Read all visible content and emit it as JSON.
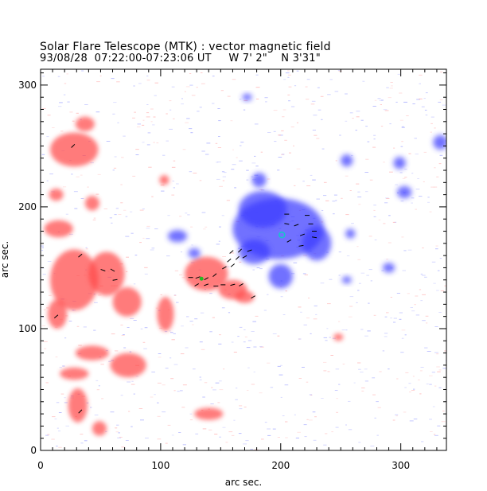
{
  "header": {
    "title": "Solar Flare Telescope (MTK) : vector magnetic field",
    "subtitle": "93/08/28  07:22:00-07:23:06 UT     W 7' 2\"    N 3'31\""
  },
  "chart_data": {
    "type": "heatmap",
    "xlabel": "arc sec.",
    "ylabel": "arc sec.",
    "xlim": [
      0,
      338
    ],
    "ylim": [
      0,
      313
    ],
    "x_ticks": [
      0,
      100,
      200,
      300
    ],
    "y_ticks": [
      0,
      100,
      200,
      300
    ],
    "grid": false,
    "colors": {
      "positive_polarity": "#ff4a4a",
      "negative_polarity": "#3a3aff",
      "vectors": "#000000",
      "marker_cyan": "#14c8c8",
      "marker_green": "#22bb22"
    },
    "regions": [
      {
        "polarity": "positive",
        "x": 28,
        "y": 247,
        "rx": 20,
        "ry": 14
      },
      {
        "polarity": "positive",
        "x": 37,
        "y": 268,
        "rx": 8,
        "ry": 6
      },
      {
        "polarity": "positive",
        "x": 13,
        "y": 210,
        "rx": 6,
        "ry": 5
      },
      {
        "polarity": "positive",
        "x": 43,
        "y": 203,
        "rx": 6,
        "ry": 6
      },
      {
        "polarity": "positive",
        "x": 15,
        "y": 182,
        "rx": 12,
        "ry": 7
      },
      {
        "polarity": "positive",
        "x": 28,
        "y": 140,
        "rx": 20,
        "ry": 25
      },
      {
        "polarity": "positive",
        "x": 55,
        "y": 145,
        "rx": 15,
        "ry": 18
      },
      {
        "polarity": "positive",
        "x": 72,
        "y": 122,
        "rx": 12,
        "ry": 12
      },
      {
        "polarity": "positive",
        "x": 14,
        "y": 112,
        "rx": 8,
        "ry": 12
      },
      {
        "polarity": "positive",
        "x": 73,
        "y": 70,
        "rx": 15,
        "ry": 10
      },
      {
        "polarity": "positive",
        "x": 43,
        "y": 80,
        "rx": 14,
        "ry": 6
      },
      {
        "polarity": "positive",
        "x": 28,
        "y": 63,
        "rx": 12,
        "ry": 5
      },
      {
        "polarity": "positive",
        "x": 31,
        "y": 37,
        "rx": 8,
        "ry": 14
      },
      {
        "polarity": "positive",
        "x": 49,
        "y": 18,
        "rx": 6,
        "ry": 6
      },
      {
        "polarity": "positive",
        "x": 104,
        "y": 112,
        "rx": 7,
        "ry": 14
      },
      {
        "polarity": "positive",
        "x": 138,
        "y": 145,
        "rx": 18,
        "ry": 14
      },
      {
        "polarity": "positive",
        "x": 160,
        "y": 132,
        "rx": 12,
        "ry": 8
      },
      {
        "polarity": "positive",
        "x": 170,
        "y": 126,
        "rx": 8,
        "ry": 5
      },
      {
        "polarity": "positive",
        "x": 103,
        "y": 222,
        "rx": 4,
        "ry": 4
      },
      {
        "polarity": "positive",
        "x": 248,
        "y": 93,
        "rx": 4,
        "ry": 3
      },
      {
        "polarity": "positive",
        "x": 140,
        "y": 30,
        "rx": 12,
        "ry": 5
      },
      {
        "polarity": "negative",
        "x": 198,
        "y": 182,
        "rx": 38,
        "ry": 25
      },
      {
        "polarity": "negative",
        "x": 230,
        "y": 170,
        "rx": 12,
        "ry": 14
      },
      {
        "polarity": "negative",
        "x": 185,
        "y": 198,
        "rx": 20,
        "ry": 15
      },
      {
        "polarity": "negative",
        "x": 178,
        "y": 163,
        "rx": 13,
        "ry": 10
      },
      {
        "polarity": "negative",
        "x": 200,
        "y": 143,
        "rx": 10,
        "ry": 10
      },
      {
        "polarity": "negative",
        "x": 182,
        "y": 222,
        "rx": 6,
        "ry": 6
      },
      {
        "polarity": "negative",
        "x": 114,
        "y": 176,
        "rx": 8,
        "ry": 5
      },
      {
        "polarity": "negative",
        "x": 128,
        "y": 162,
        "rx": 5,
        "ry": 4
      },
      {
        "polarity": "negative",
        "x": 255,
        "y": 238,
        "rx": 5,
        "ry": 5
      },
      {
        "polarity": "negative",
        "x": 299,
        "y": 236,
        "rx": 5,
        "ry": 5
      },
      {
        "polarity": "negative",
        "x": 333,
        "y": 253,
        "rx": 6,
        "ry": 6
      },
      {
        "polarity": "negative",
        "x": 303,
        "y": 212,
        "rx": 6,
        "ry": 5
      },
      {
        "polarity": "negative",
        "x": 290,
        "y": 150,
        "rx": 5,
        "ry": 4
      },
      {
        "polarity": "negative",
        "x": 172,
        "y": 290,
        "rx": 4,
        "ry": 3
      },
      {
        "polarity": "negative",
        "x": 258,
        "y": 178,
        "rx": 4,
        "ry": 4
      },
      {
        "polarity": "negative",
        "x": 255,
        "y": 140,
        "rx": 4,
        "ry": 3
      }
    ],
    "markers": [
      {
        "kind": "circle",
        "color": "cyan",
        "x": 201,
        "y": 177
      },
      {
        "kind": "dot",
        "color": "green",
        "x": 134,
        "y": 141
      }
    ]
  }
}
